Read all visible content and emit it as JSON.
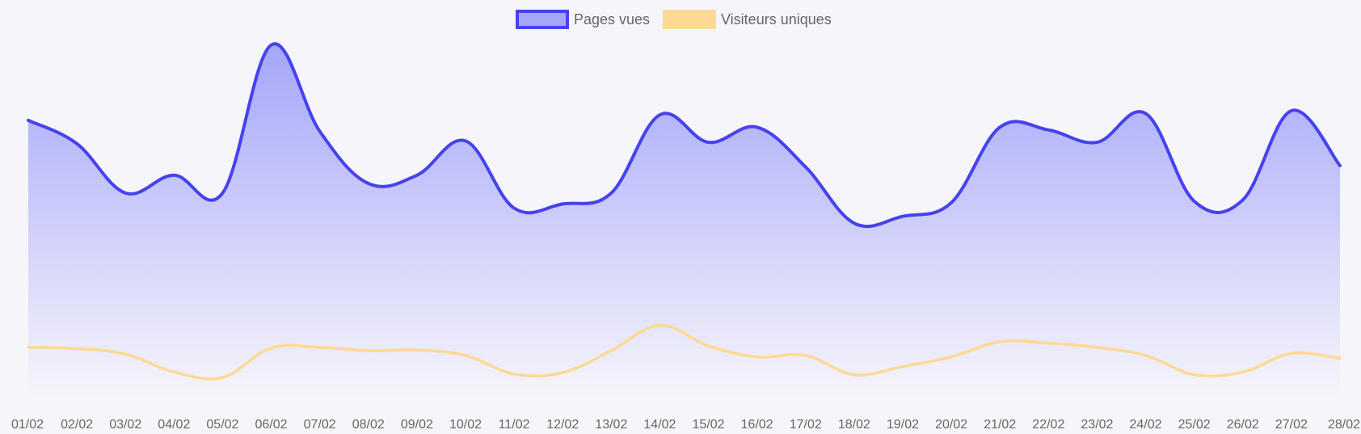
{
  "chart_data": {
    "type": "area",
    "categories": [
      "01/02",
      "02/02",
      "03/02",
      "04/02",
      "05/02",
      "06/02",
      "07/02",
      "08/02",
      "09/02",
      "10/02",
      "11/02",
      "12/02",
      "13/02",
      "14/02",
      "15/02",
      "16/02",
      "17/02",
      "18/02",
      "19/02",
      "20/02",
      "21/02",
      "22/02",
      "23/02",
      "24/02",
      "25/02",
      "26/02",
      "27/02",
      "28/02"
    ],
    "series": [
      {
        "name": "Pages vues",
        "values": [
          2040,
          1870,
          1510,
          1640,
          1510,
          2590,
          1960,
          1580,
          1640,
          1890,
          1400,
          1430,
          1510,
          2080,
          1880,
          1990,
          1700,
          1290,
          1340,
          1440,
          1990,
          1970,
          1880,
          2090,
          1450,
          1460,
          2110,
          1710
        ],
        "color": "#4542ee",
        "fill_top": "#a4a6f9",
        "fill_bottom": "#f7f6fb"
      },
      {
        "name": "Visiteurs uniques",
        "values": [
          385,
          375,
          335,
          205,
          165,
          380,
          385,
          360,
          365,
          325,
          190,
          200,
          360,
          545,
          395,
          315,
          325,
          185,
          245,
          315,
          425,
          415,
          385,
          325,
          185,
          205,
          340,
          305
        ],
        "color": "#fdd993"
      }
    ],
    "ylim": [
      0,
      2800
    ],
    "grid": false,
    "legend_position": "top-center",
    "xlabel": "",
    "ylabel": ""
  }
}
